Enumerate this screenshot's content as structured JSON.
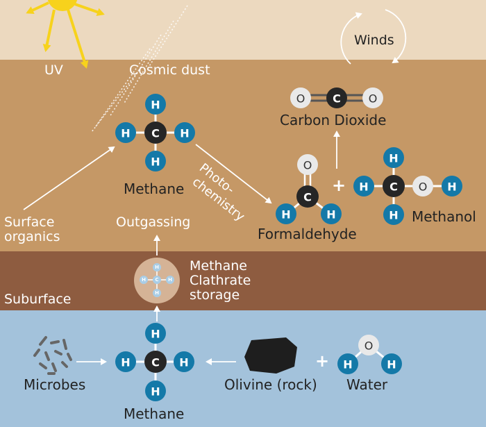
{
  "colors": {
    "sky": "#ecd9bf",
    "surface": "#c59866",
    "subsurface": "#8e5c40",
    "groundwater": "#a3c2db",
    "hydrogen": "#1479a8",
    "carbon": "#262626",
    "oxygen": "#e9e9e9",
    "sun": "#f7d21c"
  },
  "labels": {
    "uv": "UV",
    "cosmic_dust": "Cosmic dust",
    "winds": "Winds",
    "carbon_dioxide": "Carbon Dioxide",
    "methane_top": "Methane",
    "photochemistry_1": "Photo-",
    "photochemistry_2": "chemistry",
    "formaldehyde": "Formaldehyde",
    "methanol": "Methanol",
    "plus": "+",
    "surface_organics_1": "Surface",
    "surface_organics_2": "organics",
    "outgassing": "Outgassing",
    "clathrate_1": "Methane",
    "clathrate_2": "Clathrate",
    "clathrate_3": "storage",
    "suburface": "Suburface",
    "microbes": "Microbes",
    "methane_bottom": "Methane",
    "olivine": "Olivine (rock)",
    "water": "Water"
  },
  "atoms": {
    "H": "H",
    "C": "C",
    "O": "O"
  }
}
